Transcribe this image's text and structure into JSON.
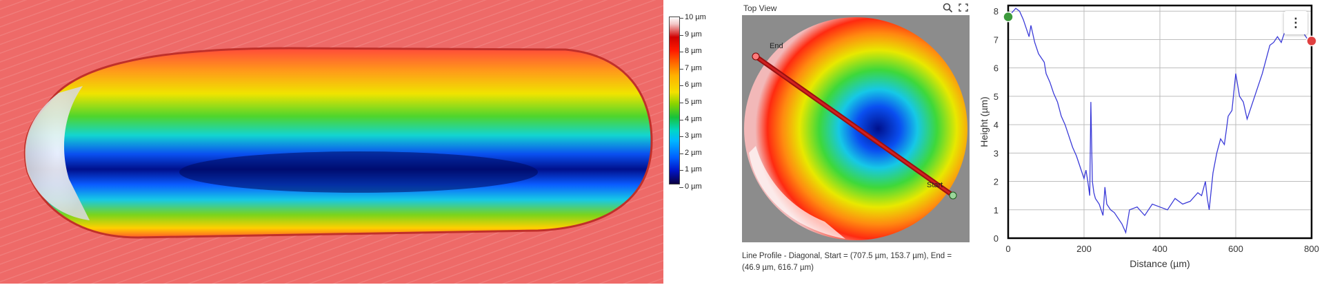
{
  "legend": {
    "labels": [
      "10 µm",
      "9 µm",
      "8 µm",
      "7 µm",
      "6 µm",
      "5 µm",
      "4 µm",
      "3 µm",
      "2 µm",
      "1 µm",
      "0 µm"
    ]
  },
  "top_view": {
    "title": "Top View",
    "zoom_icon": "magnifier-icon",
    "fullscreen_icon": "fullscreen-icon",
    "end_label": "End",
    "start_label": "Start",
    "caption_line1": "Line Profile - Diagonal, Start = (707.5 µm, 153.7 µm), End =",
    "caption_line2": "(46.9 µm, 616.7 µm)"
  },
  "chart_menu_icon": "kebab-menu-icon",
  "chart_data": {
    "type": "line",
    "xlabel": "Distance (µm)",
    "ylabel": "Height (µm)",
    "xlim": [
      0,
      800
    ],
    "ylim": [
      0,
      8.2
    ],
    "x_ticks": [
      0,
      200,
      400,
      600,
      800
    ],
    "y_ticks": [
      0,
      1,
      2,
      3,
      4,
      5,
      6,
      7,
      8
    ],
    "grid": true,
    "color": "#3a3ad8",
    "series": [
      {
        "x": [
          0,
          20,
          30,
          40,
          55,
          60,
          70,
          80,
          95,
          100,
          110,
          120,
          130,
          140,
          150,
          160,
          170,
          180,
          190,
          200,
          205,
          210,
          215,
          218,
          222,
          226,
          230,
          240,
          250,
          255,
          260,
          270,
          280,
          300,
          310,
          320,
          340,
          360,
          380,
          400,
          420,
          440,
          460,
          480,
          500,
          510,
          520,
          525,
          530,
          540,
          550,
          560,
          570,
          575,
          580,
          590,
          600,
          610,
          620,
          630,
          640,
          650,
          660,
          670,
          680,
          690,
          700,
          710,
          720,
          730,
          740,
          750,
          760,
          770,
          780,
          790,
          800
        ],
        "y": [
          7.8,
          8.1,
          8.0,
          7.7,
          7.1,
          7.5,
          6.9,
          6.5,
          6.2,
          5.8,
          5.5,
          5.1,
          4.8,
          4.3,
          4.0,
          3.6,
          3.2,
          2.9,
          2.5,
          2.1,
          2.4,
          2.0,
          1.5,
          4.8,
          2.0,
          1.6,
          1.4,
          1.2,
          0.8,
          1.8,
          1.2,
          1.0,
          0.9,
          0.5,
          0.2,
          1.0,
          1.1,
          0.8,
          1.2,
          1.1,
          1.0,
          1.4,
          1.2,
          1.3,
          1.6,
          1.5,
          2.0,
          1.4,
          1.0,
          2.3,
          3.0,
          3.5,
          3.3,
          3.8,
          4.3,
          4.5,
          5.8,
          5.0,
          4.8,
          4.2,
          4.6,
          5.0,
          5.4,
          5.8,
          6.3,
          6.8,
          6.9,
          7.1,
          6.9,
          7.3,
          7.8,
          7.5,
          7.6,
          7.4,
          7.2,
          7.0,
          6.95
        ]
      }
    ],
    "start_marker_color": "#3c9a3c",
    "end_marker_color": "#e04040"
  }
}
